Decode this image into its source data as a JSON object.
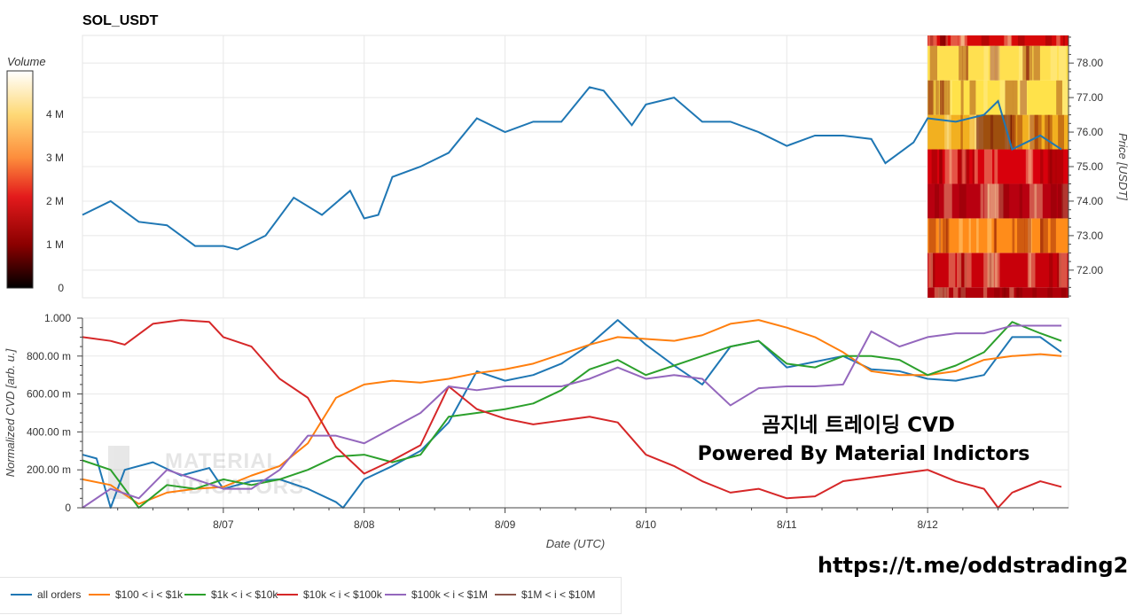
{
  "title": "SOL_USDT",
  "colorbar": {
    "label": "Volume",
    "ticks": [
      "0",
      "1 M",
      "2 M",
      "3 M",
      "4 M"
    ],
    "tick_values": [
      0,
      1,
      2,
      3,
      4
    ],
    "max": 5
  },
  "watermark": {
    "line1": "곰지네 트레이딩 CVD",
    "line2": "Powered By Material Indictors",
    "logo_text_1": "MATERIAL",
    "logo_text_2": "INDICATORS"
  },
  "link": "https://t.me/oddstrading2",
  "colors": {
    "all": "#1f77b4",
    "c100_1k": "#ff7f0e",
    "c1k_10k": "#2ca02c",
    "c10k_100k": "#d62728",
    "c100k_1m": "#9467bd",
    "c1m_10m": "#8c564b"
  },
  "chart_data": [
    {
      "type": "line",
      "panel": "price",
      "ylabel": "Price [USDT]",
      "ylim": [
        71.2,
        78.8
      ],
      "xlim": [
        0,
        7
      ],
      "y_ticks": [
        "72.00",
        "73.00",
        "74.00",
        "75.00",
        "76.00",
        "77.00",
        "78.00"
      ],
      "y_tick_values": [
        72,
        73,
        74,
        75,
        76,
        77,
        78
      ],
      "x": [
        0,
        0.2,
        0.4,
        0.6,
        0.8,
        1,
        1.1,
        1.3,
        1.5,
        1.7,
        1.9,
        2,
        2.1,
        2.2,
        2.4,
        2.6,
        2.8,
        3,
        3.2,
        3.4,
        3.6,
        3.7,
        3.9,
        4,
        4.2,
        4.4,
        4.6,
        4.8,
        5,
        5.2,
        5.4,
        5.6,
        5.7,
        5.9,
        6,
        6.2,
        6.4,
        6.5,
        6.6,
        6.8,
        6.95
      ],
      "values": [
        73.6,
        74.0,
        73.4,
        73.3,
        72.7,
        72.7,
        72.6,
        73.0,
        74.1,
        73.6,
        74.3,
        73.5,
        73.6,
        74.7,
        75.0,
        75.4,
        76.4,
        76.0,
        76.3,
        76.3,
        77.3,
        77.2,
        76.2,
        76.8,
        77.0,
        76.3,
        76.3,
        76.0,
        75.6,
        75.9,
        75.9,
        75.8,
        75.1,
        75.7,
        76.4,
        76.3,
        76.5,
        76.9,
        75.5,
        75.9,
        75.5
      ],
      "heatmap_zone": {
        "x_start": 6.0,
        "price_bands": [
          72.0,
          73.0,
          74.0,
          75.0,
          76.0,
          77.0,
          78.0
        ]
      }
    },
    {
      "type": "line",
      "panel": "cvd",
      "xlabel": "Date (UTC)",
      "ylabel": "Normalized CVD [arb. u.]",
      "ylim": [
        0,
        1
      ],
      "xlim": [
        0,
        7
      ],
      "y_ticks": [
        "0",
        "200.00 m",
        "400.00 m",
        "600.00 m",
        "800.00 m",
        "1.000"
      ],
      "y_tick_values": [
        0,
        0.2,
        0.4,
        0.6,
        0.8,
        1.0
      ],
      "categories": [
        "8/07",
        "8/08",
        "8/09",
        "8/10",
        "8/11",
        "8/12"
      ],
      "category_x": [
        1,
        2,
        3,
        4,
        5,
        6
      ],
      "series": [
        {
          "name": "all orders",
          "color_key": "all",
          "x": [
            0,
            0.1,
            0.2,
            0.3,
            0.5,
            0.7,
            0.9,
            1.0,
            1.2,
            1.4,
            1.6,
            1.8,
            1.85,
            2.0,
            2.2,
            2.4,
            2.6,
            2.8,
            3.0,
            3.2,
            3.4,
            3.6,
            3.8,
            4.0,
            4.2,
            4.4,
            4.6,
            4.8,
            5.0,
            5.2,
            5.4,
            5.6,
            5.8,
            6.0,
            6.2,
            6.4,
            6.6,
            6.8,
            6.95
          ],
          "values": [
            0.28,
            0.26,
            0.0,
            0.2,
            0.24,
            0.17,
            0.21,
            0.1,
            0.14,
            0.15,
            0.1,
            0.03,
            0.0,
            0.15,
            0.22,
            0.3,
            0.45,
            0.72,
            0.67,
            0.7,
            0.76,
            0.86,
            0.99,
            0.86,
            0.75,
            0.65,
            0.85,
            0.88,
            0.74,
            0.77,
            0.8,
            0.73,
            0.72,
            0.68,
            0.67,
            0.7,
            0.9,
            0.9,
            0.82
          ]
        },
        {
          "name": "$100 < i < $1k",
          "color_key": "c100_1k",
          "x": [
            0,
            0.2,
            0.4,
            0.6,
            0.8,
            1.0,
            1.2,
            1.4,
            1.6,
            1.8,
            2.0,
            2.2,
            2.4,
            2.6,
            2.8,
            3.0,
            3.2,
            3.4,
            3.6,
            3.8,
            4.0,
            4.2,
            4.4,
            4.6,
            4.8,
            5.0,
            5.2,
            5.4,
            5.6,
            5.8,
            6.0,
            6.2,
            6.4,
            6.6,
            6.8,
            6.95
          ],
          "values": [
            0.15,
            0.12,
            0.02,
            0.08,
            0.1,
            0.11,
            0.17,
            0.22,
            0.34,
            0.58,
            0.65,
            0.67,
            0.66,
            0.68,
            0.71,
            0.73,
            0.76,
            0.81,
            0.86,
            0.9,
            0.89,
            0.88,
            0.91,
            0.97,
            0.99,
            0.95,
            0.9,
            0.82,
            0.72,
            0.7,
            0.7,
            0.72,
            0.78,
            0.8,
            0.81,
            0.8
          ]
        },
        {
          "name": "$1k < i < $10k",
          "color_key": "c1k_10k",
          "x": [
            0,
            0.2,
            0.4,
            0.6,
            0.8,
            1.0,
            1.2,
            1.4,
            1.6,
            1.8,
            2.0,
            2.2,
            2.4,
            2.6,
            2.8,
            3.0,
            3.2,
            3.4,
            3.6,
            3.8,
            4.0,
            4.2,
            4.4,
            4.6,
            4.8,
            5.0,
            5.2,
            5.4,
            5.6,
            5.8,
            6.0,
            6.2,
            6.4,
            6.6,
            6.8,
            6.95
          ],
          "values": [
            0.25,
            0.2,
            0.0,
            0.12,
            0.1,
            0.15,
            0.12,
            0.15,
            0.2,
            0.27,
            0.28,
            0.24,
            0.28,
            0.48,
            0.5,
            0.52,
            0.55,
            0.62,
            0.73,
            0.78,
            0.7,
            0.75,
            0.8,
            0.85,
            0.88,
            0.76,
            0.74,
            0.8,
            0.8,
            0.78,
            0.7,
            0.75,
            0.82,
            0.98,
            0.92,
            0.88
          ]
        },
        {
          "name": "$10k < i < $100k",
          "color_key": "c10k_100k",
          "x": [
            0,
            0.2,
            0.3,
            0.5,
            0.7,
            0.9,
            1.0,
            1.2,
            1.4,
            1.6,
            1.8,
            2.0,
            2.2,
            2.4,
            2.6,
            2.8,
            3.0,
            3.2,
            3.4,
            3.6,
            3.8,
            4.0,
            4.2,
            4.4,
            4.6,
            4.8,
            5.0,
            5.2,
            5.4,
            5.6,
            5.8,
            6.0,
            6.2,
            6.4,
            6.5,
            6.6,
            6.8,
            6.95
          ],
          "values": [
            0.9,
            0.88,
            0.86,
            0.97,
            0.99,
            0.98,
            0.9,
            0.85,
            0.68,
            0.58,
            0.32,
            0.18,
            0.25,
            0.33,
            0.64,
            0.52,
            0.47,
            0.44,
            0.46,
            0.48,
            0.45,
            0.28,
            0.22,
            0.14,
            0.08,
            0.1,
            0.05,
            0.06,
            0.14,
            0.16,
            0.18,
            0.2,
            0.14,
            0.1,
            0.0,
            0.08,
            0.14,
            0.11
          ]
        },
        {
          "name": "$100k < i < $1M",
          "color_key": "c100k_1m",
          "x": [
            0,
            0.2,
            0.4,
            0.6,
            0.8,
            1.0,
            1.2,
            1.4,
            1.6,
            1.8,
            2.0,
            2.2,
            2.4,
            2.6,
            2.8,
            3.0,
            3.2,
            3.4,
            3.6,
            3.8,
            4.0,
            4.2,
            4.4,
            4.6,
            4.8,
            5.0,
            5.2,
            5.4,
            5.6,
            5.8,
            6.0,
            6.2,
            6.4,
            6.6,
            6.8,
            6.95
          ],
          "values": [
            0.0,
            0.1,
            0.05,
            0.2,
            0.15,
            0.1,
            0.1,
            0.2,
            0.38,
            0.38,
            0.34,
            0.42,
            0.5,
            0.64,
            0.62,
            0.64,
            0.64,
            0.64,
            0.68,
            0.74,
            0.68,
            0.7,
            0.68,
            0.54,
            0.63,
            0.64,
            0.64,
            0.65,
            0.93,
            0.85,
            0.9,
            0.92,
            0.92,
            0.96,
            0.96,
            0.96
          ]
        }
      ],
      "legend_only": [
        {
          "name": "$1M < i < $10M",
          "color_key": "c1m_10m"
        }
      ]
    }
  ]
}
